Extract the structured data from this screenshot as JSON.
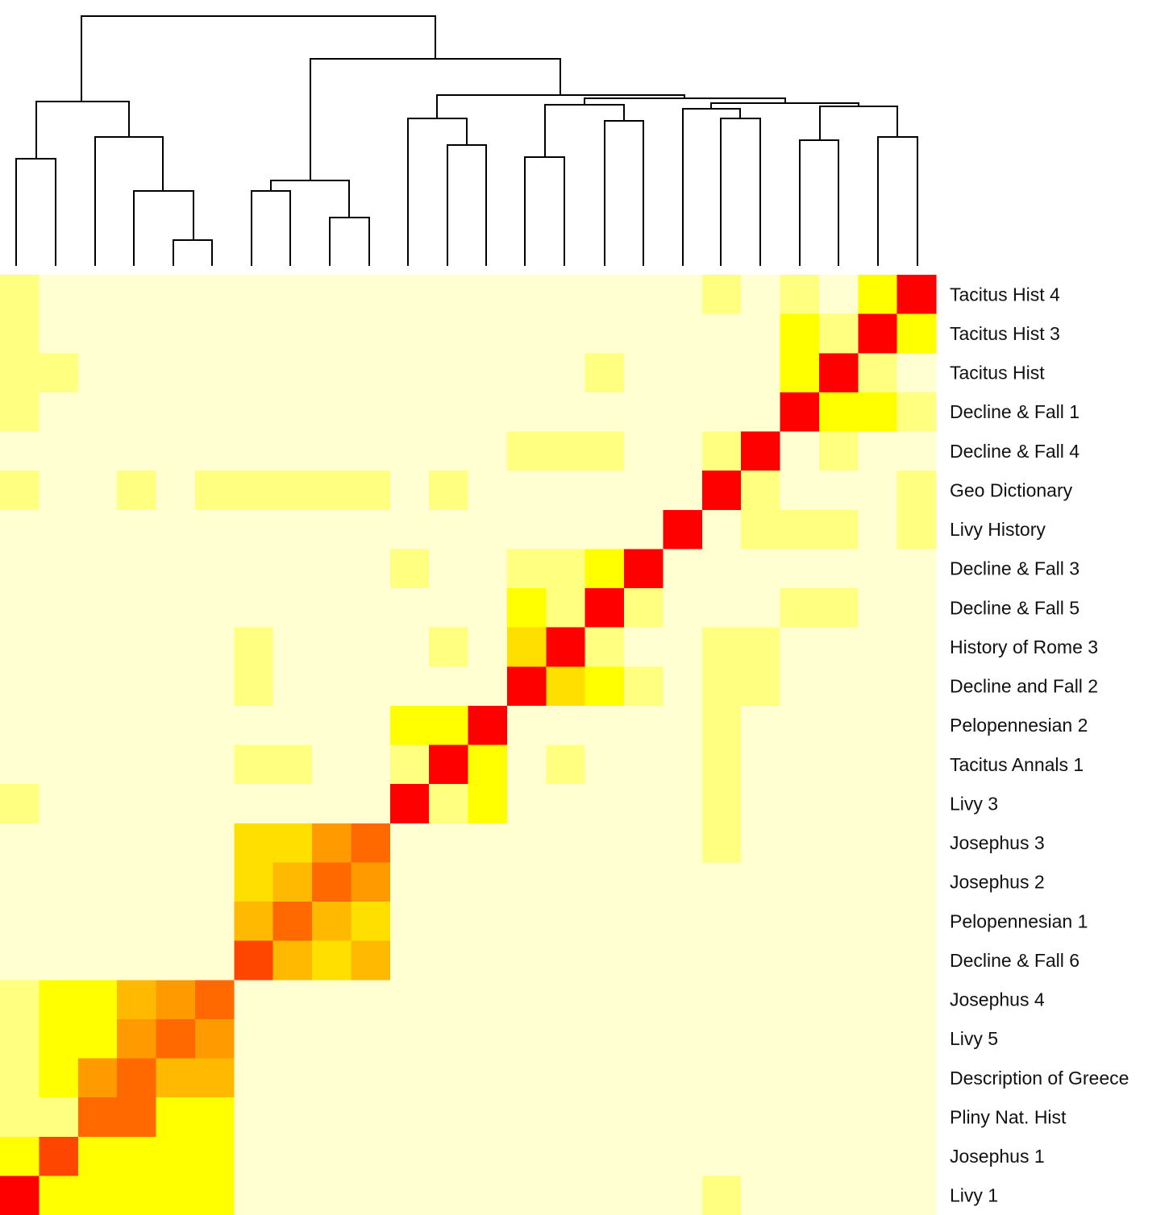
{
  "chart_data": {
    "type": "heatmap",
    "dendrogram": "top",
    "colors": {
      "0": "#FFFFD1",
      "1": "#FFFF80",
      "2": "#FFFF00",
      "3": "#FFDF00",
      "4": "#FFB900",
      "5": "#FF9A00",
      "6": "#FF6900",
      "7": "#FF4600",
      "8": "#FF0000"
    },
    "rows": [
      {
        "label": "Tacitus Hist 4",
        "values": [
          1,
          0,
          0,
          0,
          0,
          0,
          0,
          0,
          0,
          0,
          0,
          0,
          0,
          0,
          0,
          0,
          0,
          0,
          1,
          0,
          1,
          0,
          2,
          8
        ]
      },
      {
        "label": "Tacitus Hist 3",
        "values": [
          1,
          0,
          0,
          0,
          0,
          0,
          0,
          0,
          0,
          0,
          0,
          0,
          0,
          0,
          0,
          0,
          0,
          0,
          0,
          0,
          2,
          1,
          8,
          2
        ]
      },
      {
        "label": "Tacitus Hist",
        "values": [
          1,
          1,
          0,
          0,
          0,
          0,
          0,
          0,
          0,
          0,
          0,
          0,
          0,
          0,
          0,
          1,
          0,
          0,
          0,
          0,
          2,
          8,
          1,
          0
        ]
      },
      {
        "label": "Decline & Fall 1",
        "values": [
          1,
          0,
          0,
          0,
          0,
          0,
          0,
          0,
          0,
          0,
          0,
          0,
          0,
          0,
          0,
          0,
          0,
          0,
          0,
          0,
          8,
          2,
          2,
          1
        ]
      },
      {
        "label": "Decline & Fall 4",
        "values": [
          0,
          0,
          0,
          0,
          0,
          0,
          0,
          0,
          0,
          0,
          0,
          0,
          0,
          1,
          1,
          1,
          0,
          0,
          1,
          8,
          0,
          1,
          0,
          0
        ]
      },
      {
        "label": "Geo Dictionary",
        "values": [
          1,
          0,
          0,
          1,
          0,
          1,
          1,
          1,
          1,
          1,
          0,
          1,
          0,
          0,
          0,
          0,
          0,
          0,
          8,
          1,
          0,
          0,
          0,
          1
        ]
      },
      {
        "label": "Livy History",
        "values": [
          0,
          0,
          0,
          0,
          0,
          0,
          0,
          0,
          0,
          0,
          0,
          0,
          0,
          0,
          0,
          0,
          0,
          8,
          0,
          1,
          1,
          1,
          0,
          1
        ]
      },
      {
        "label": "Decline & Fall 3",
        "values": [
          0,
          0,
          0,
          0,
          0,
          0,
          0,
          0,
          0,
          0,
          1,
          0,
          0,
          1,
          1,
          2,
          8,
          0,
          0,
          0,
          0,
          0,
          0,
          0
        ]
      },
      {
        "label": "Decline & Fall 5",
        "values": [
          0,
          0,
          0,
          0,
          0,
          0,
          0,
          0,
          0,
          0,
          0,
          0,
          0,
          2,
          1,
          8,
          1,
          0,
          0,
          0,
          1,
          1,
          0,
          0
        ]
      },
      {
        "label": "History of Rome 3",
        "values": [
          0,
          0,
          0,
          0,
          0,
          0,
          1,
          0,
          0,
          0,
          0,
          1,
          0,
          3,
          8,
          1,
          0,
          0,
          1,
          1,
          0,
          0,
          0,
          0
        ]
      },
      {
        "label": "Decline and Fall 2",
        "values": [
          0,
          0,
          0,
          0,
          0,
          0,
          1,
          0,
          0,
          0,
          0,
          0,
          0,
          8,
          3,
          2,
          1,
          0,
          1,
          1,
          0,
          0,
          0,
          0
        ]
      },
      {
        "label": "Pelopennesian 2",
        "values": [
          0,
          0,
          0,
          0,
          0,
          0,
          0,
          0,
          0,
          0,
          2,
          2,
          8,
          0,
          0,
          0,
          0,
          0,
          1,
          0,
          0,
          0,
          0,
          0
        ]
      },
      {
        "label": "Tacitus Annals 1",
        "values": [
          0,
          0,
          0,
          0,
          0,
          0,
          1,
          1,
          0,
          0,
          1,
          8,
          2,
          0,
          1,
          0,
          0,
          0,
          1,
          0,
          0,
          0,
          0,
          0
        ]
      },
      {
        "label": "Livy 3",
        "values": [
          1,
          0,
          0,
          0,
          0,
          0,
          0,
          0,
          0,
          0,
          8,
          1,
          2,
          0,
          0,
          0,
          0,
          0,
          1,
          0,
          0,
          0,
          0,
          0
        ]
      },
      {
        "label": "Josephus 3",
        "values": [
          0,
          0,
          0,
          0,
          0,
          0,
          3,
          3,
          5,
          6,
          0,
          0,
          0,
          0,
          0,
          0,
          0,
          0,
          1,
          0,
          0,
          0,
          0,
          0
        ]
      },
      {
        "label": "Josephus 2",
        "values": [
          0,
          0,
          0,
          0,
          0,
          0,
          3,
          4,
          6,
          5,
          0,
          0,
          0,
          0,
          0,
          0,
          0,
          0,
          0,
          0,
          0,
          0,
          0,
          0
        ]
      },
      {
        "label": "Pelopennesian 1",
        "values": [
          0,
          0,
          0,
          0,
          0,
          0,
          4,
          6,
          4,
          3,
          0,
          0,
          0,
          0,
          0,
          0,
          0,
          0,
          0,
          0,
          0,
          0,
          0,
          0
        ]
      },
      {
        "label": "Decline & Fall 6",
        "values": [
          0,
          0,
          0,
          0,
          0,
          0,
          7,
          4,
          3,
          4,
          0,
          0,
          0,
          0,
          0,
          0,
          0,
          0,
          0,
          0,
          0,
          0,
          0,
          0
        ]
      },
      {
        "label": "Josephus 4",
        "values": [
          1,
          2,
          2,
          4,
          5,
          6,
          0,
          0,
          0,
          0,
          0,
          0,
          0,
          0,
          0,
          0,
          0,
          0,
          0,
          0,
          0,
          0,
          0,
          0
        ]
      },
      {
        "label": "Livy 5",
        "values": [
          1,
          2,
          2,
          5,
          6,
          5,
          0,
          0,
          0,
          0,
          0,
          0,
          0,
          0,
          0,
          0,
          0,
          0,
          0,
          0,
          0,
          0,
          0,
          0
        ]
      },
      {
        "label": "Description of Greece",
        "values": [
          1,
          2,
          5,
          6,
          4,
          4,
          0,
          0,
          0,
          0,
          0,
          0,
          0,
          0,
          0,
          0,
          0,
          0,
          0,
          0,
          0,
          0,
          0,
          0
        ]
      },
      {
        "label": "Pliny Nat. Hist",
        "values": [
          1,
          1,
          6,
          6,
          2,
          2,
          0,
          0,
          0,
          0,
          0,
          0,
          0,
          0,
          0,
          0,
          0,
          0,
          0,
          0,
          0,
          0,
          0,
          0
        ]
      },
      {
        "label": "Josephus 1",
        "values": [
          2,
          7,
          2,
          2,
          2,
          2,
          0,
          0,
          0,
          0,
          0,
          0,
          0,
          0,
          0,
          0,
          0,
          0,
          0,
          0,
          0,
          0,
          0,
          0
        ]
      },
      {
        "label": "Livy 1",
        "values": [
          8,
          2,
          2,
          2,
          2,
          2,
          0,
          0,
          0,
          0,
          0,
          0,
          0,
          0,
          0,
          0,
          0,
          0,
          1,
          0,
          0,
          0,
          0,
          0
        ]
      }
    ]
  }
}
